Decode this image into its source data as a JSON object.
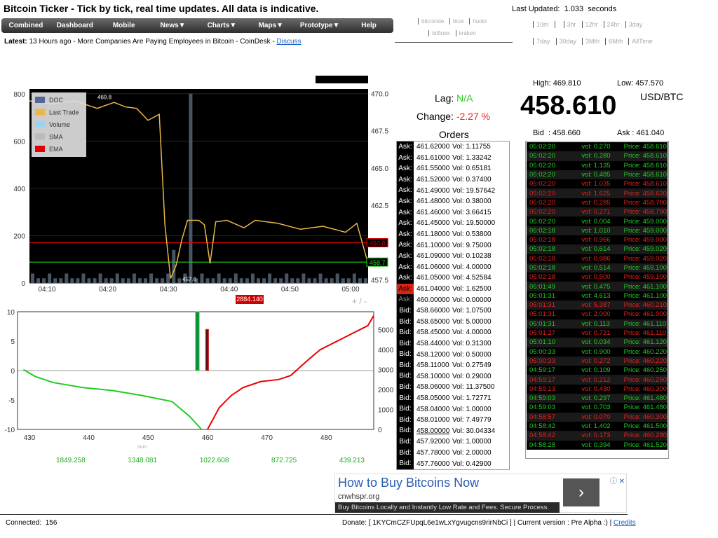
{
  "title": "Bitcoin Ticker - Tick by tick, real time updates. All data is indicative.",
  "nav": [
    "Combined",
    "Dashboard",
    "Mobile",
    "News▼",
    "Charts▼",
    "Maps▼",
    "Prototype▼",
    "Help"
  ],
  "latest": {
    "label": "Latest:",
    "text": " 13 Hours ago - More Companies Are Paying Employees in Bitcoin - CoinDesk - ",
    "link": "Discuss"
  },
  "exchanges": {
    "row1": [
      "bitcoinde",
      "btce",
      "huobi"
    ],
    "row2": [
      "bitfinex",
      "kraken"
    ],
    "row3": [
      "",
      "",
      ""
    ]
  },
  "last_updated": {
    "label": "Last Updated:",
    "value": "1.033",
    "unit": "seconds"
  },
  "timeframes": {
    "row1": [
      "10m",
      "",
      "3hr",
      "12hr",
      "24hr",
      "3day"
    ],
    "row2": [
      "7day",
      "30day",
      "3Mth",
      "6Mth",
      "AllTime"
    ]
  },
  "stats": {
    "lag_label": "Lag:",
    "lag": "N/A",
    "change_label": "Change:",
    "change": "-2.27 %",
    "orders_label": "Orders"
  },
  "ticker": {
    "high_label": "High:",
    "high": "469.810",
    "low_label": "Low:",
    "low": "457.570",
    "price": "458.610",
    "currency": "USD/BTC",
    "bid_label": "Bid",
    "bid": "458.660",
    "ask_label": "Ask",
    "ask": "461.040"
  },
  "orders": [
    {
      "t": "Ask:",
      "p": "461.62000",
      "v": "Vol: 1.11755"
    },
    {
      "t": "Ask:",
      "p": "461.61000",
      "v": "Vol: 1.33242"
    },
    {
      "t": "Ask:",
      "p": "461.55000",
      "v": "Vol: 0.65181"
    },
    {
      "t": "Ask:",
      "p": "461.52000",
      "v": "Vol: 0.37400"
    },
    {
      "t": "Ask:",
      "p": "461.49000",
      "v": "Vol: 19.57642"
    },
    {
      "t": "Ask:",
      "p": "461.48000",
      "v": "Vol: 0.38000"
    },
    {
      "t": "Ask:",
      "p": "461.46000",
      "v": "Vol: 3.66415"
    },
    {
      "t": "Ask:",
      "p": "461.45000",
      "v": "Vol: 19.50000"
    },
    {
      "t": "Ask:",
      "p": "461.18000",
      "v": "Vol: 0.53800"
    },
    {
      "t": "Ask:",
      "p": "461.10000",
      "v": "Vol: 9.75000"
    },
    {
      "t": "Ask:",
      "p": "461.09000",
      "v": "Vol: 0.10238"
    },
    {
      "t": "Ask:",
      "p": "461.06000",
      "v": "Vol: 4.00000"
    },
    {
      "t": "Ask:",
      "p": "461.05000",
      "v": "Vol: 4.52584"
    },
    {
      "t": "Ask:",
      "p": "461.04000",
      "v": "Vol: 1.62500",
      "hl": true
    },
    {
      "t": "Ask:",
      "p": "460.00000",
      "v": "Vol: 0.00000",
      "dim": true
    },
    {
      "t": "Bid:",
      "p": "458.66000",
      "v": "Vol: 1.07500"
    },
    {
      "t": "Bid:",
      "p": "458.65000",
      "v": "Vol: 5.00000"
    },
    {
      "t": "Bid:",
      "p": "458.45000",
      "v": "Vol: 4.00000"
    },
    {
      "t": "Bid:",
      "p": "458.44000",
      "v": "Vol: 0.31300"
    },
    {
      "t": "Bid:",
      "p": "458.12000",
      "v": "Vol: 0.50000"
    },
    {
      "t": "Bid:",
      "p": "458.11000",
      "v": "Vol: 0.27549"
    },
    {
      "t": "Bid:",
      "p": "458.10000",
      "v": "Vol: 0.29000"
    },
    {
      "t": "Bid:",
      "p": "458.06000",
      "v": "Vol: 11.37500"
    },
    {
      "t": "Bid:",
      "p": "458.05000",
      "v": "Vol: 1.72771"
    },
    {
      "t": "Bid:",
      "p": "458.04000",
      "v": "Vol: 1.00000"
    },
    {
      "t": "Bid:",
      "p": "458.01000",
      "v": "Vol: 7.49779"
    },
    {
      "t": "Bid:",
      "p": "458.00000",
      "v": "Vol: 30.04334",
      "ul": true
    },
    {
      "t": "Bid:",
      "p": "457.92000",
      "v": "Vol: 1.00000"
    },
    {
      "t": "Bid:",
      "p": "457.78000",
      "v": "Vol: 2.00000"
    },
    {
      "t": "Bid:",
      "p": "457.76000",
      "v": "Vol: 0.42900"
    }
  ],
  "trades": [
    {
      "t": "05:02:20",
      "v": "vol: 0.270",
      "p": "Price: 458.610",
      "c": "g"
    },
    {
      "t": "05:02:20",
      "v": "vol: 0.280",
      "p": "Price: 458.610",
      "c": "g"
    },
    {
      "t": "05:02:20",
      "v": "vol: 1.135",
      "p": "Price: 458.610",
      "c": "g"
    },
    {
      "t": "05:02:20",
      "v": "vol: 0.485",
      "p": "Price: 458.610",
      "c": "g"
    },
    {
      "t": "05:02:20",
      "v": "vol: 1.035",
      "p": "Price: 458.610",
      "c": "r"
    },
    {
      "t": "05:02:20",
      "v": "vol: 1.625",
      "p": "Price: 458.620",
      "c": "r"
    },
    {
      "t": "05:02:20",
      "v": "vol: 0.285",
      "p": "Price: 458.780",
      "c": "r"
    },
    {
      "t": "05:02:20",
      "v": "vol: 0.271",
      "p": "Price: 458.790",
      "c": "r"
    },
    {
      "t": "05:02:20",
      "v": "vol: 0.004",
      "p": "Price: 459.000",
      "c": "g"
    },
    {
      "t": "05:02:18",
      "v": "vol: 1.010",
      "p": "Price: 459.000",
      "c": "g"
    },
    {
      "t": "05:02:18",
      "v": "vol: 0.966",
      "p": "Price: 459.000",
      "c": "r"
    },
    {
      "t": "05:02:18",
      "v": "vol: 0.614",
      "p": "Price: 459.020",
      "c": "g"
    },
    {
      "t": "05:02:18",
      "v": "vol: 0.986",
      "p": "Price: 459.020",
      "c": "r"
    },
    {
      "t": "05:02:18",
      "v": "vol: 0.514",
      "p": "Price: 459.100",
      "c": "g"
    },
    {
      "t": "05:02:18",
      "v": "vol: 0.500",
      "p": "Price: 459.100",
      "c": "r"
    },
    {
      "t": "05:01:49",
      "v": "vol: 0.475",
      "p": "Price: 461.100",
      "c": "g"
    },
    {
      "t": "05:01:31",
      "v": "vol: 4.613",
      "p": "Price: 461.100",
      "c": "g"
    },
    {
      "t": "05:01:31",
      "v": "vol: 5.387",
      "p": "Price: 460.210",
      "c": "r"
    },
    {
      "t": "05:01:31",
      "v": "vol: 2.000",
      "p": "Price: 461.000",
      "c": "r"
    },
    {
      "t": "05:01:31",
      "v": "vol: 0.113",
      "p": "Price: 461.110",
      "c": "g"
    },
    {
      "t": "05:01:27",
      "v": "vol: 0.721",
      "p": "Price: 461.110",
      "c": "r"
    },
    {
      "t": "05:01:10",
      "v": "vol: 0.034",
      "p": "Price: 461.120",
      "c": "g"
    },
    {
      "t": "05:00:33",
      "v": "vol: 0.900",
      "p": "Price: 460.220",
      "c": "g"
    },
    {
      "t": "05:00:33",
      "v": "vol: 0.272",
      "p": "Price: 460.220",
      "c": "r"
    },
    {
      "t": "04:59:17",
      "v": "vol: 0.109",
      "p": "Price: 460.250",
      "c": "g"
    },
    {
      "t": "04:59:17",
      "v": "vol: 0.212",
      "p": "Price: 460.250",
      "c": "r"
    },
    {
      "t": "04:59:13",
      "v": "vol: 0.430",
      "p": "Price: 460.300",
      "c": "r"
    },
    {
      "t": "04:59:03",
      "v": "vol: 0.297",
      "p": "Price: 461.480",
      "c": "g"
    },
    {
      "t": "04:59:03",
      "v": "vol: 0.703",
      "p": "Price: 461.480",
      "c": "g"
    },
    {
      "t": "04:58:57",
      "v": "vol: 0.070",
      "p": "Price: 460.300",
      "c": "r"
    },
    {
      "t": "04:58:42",
      "v": "vol: 1.402",
      "p": "Price: 461.500",
      "c": "g"
    },
    {
      "t": "04:58:42",
      "v": "vol: 0.173",
      "p": "Price: 460.280",
      "c": "r"
    },
    {
      "t": "04:58:28",
      "v": "vol: 0.394",
      "p": "Price: 461.520",
      "c": "g"
    }
  ],
  "chart_data": [
    {
      "type": "line",
      "title": "",
      "left_axis_ticks": [
        "0",
        "200",
        "400",
        "600",
        "800"
      ],
      "right_axis_ticks": [
        "457.5",
        "460.0",
        "462.5",
        "465.0",
        "467.5",
        "470.0"
      ],
      "x_ticks": [
        "04:10",
        "04:20",
        "04:30",
        "04:40",
        "04:50",
        "05:00"
      ],
      "legend": [
        "DOC",
        "Last Trade",
        "Volume",
        "SMA",
        "EMA"
      ],
      "legend_colors": [
        "#556699",
        "#e8b84a",
        "#9cd3f0",
        "#bbbbbb",
        "#e00000"
      ],
      "annotations": {
        "high": "469.8",
        "low": "457.6",
        "red_line_label": "460.0",
        "green_line_label": "458.7",
        "price_box": "2884.140"
      },
      "last_trade": {
        "x": [
          0,
          4,
          8,
          12,
          15,
          17,
          19,
          21,
          23,
          24,
          25,
          26,
          27,
          28,
          30,
          31,
          32,
          33,
          35,
          38,
          40,
          44,
          48,
          52,
          56,
          58,
          60
        ],
        "y": [
          469.5,
          469.3,
          469.5,
          469.0,
          469.4,
          469.1,
          469.0,
          468.2,
          468.6,
          461.2,
          457.6,
          458.5,
          460.2,
          461.5,
          461.5,
          461.2,
          458.6,
          461.4,
          461.5,
          461.0,
          461.5,
          461.3,
          460.9,
          461.1,
          460.7,
          461.3,
          458.6
        ]
      },
      "red_line": 460.0,
      "green_line": 458.7
    },
    {
      "type": "line",
      "title": "",
      "left_axis_ticks": [
        "-10",
        "-5",
        "0",
        "5",
        "10"
      ],
      "right_axis_ticks": [
        "0",
        "1000",
        "2000",
        "3000",
        "4000",
        "5000"
      ],
      "x_ticks": [
        "430",
        "440",
        "450",
        "460",
        "470",
        "480"
      ],
      "x_label": "sum",
      "sums": [
        "1849.258",
        "1348.081",
        "1022.608",
        "872.725",
        "439.213"
      ],
      "bid_cum": {
        "x": [
          430,
          432,
          435,
          440,
          445,
          450,
          455,
          458,
          460
        ],
        "y": [
          3000,
          2650,
          2350,
          2100,
          1950,
          1700,
          1400,
          650,
          0
        ]
      },
      "ask_cum": {
        "x": [
          461,
          463,
          465,
          467,
          470,
          473,
          475,
          478,
          480,
          484,
          488,
          489
        ],
        "y": [
          0,
          1100,
          1700,
          2100,
          2400,
          2500,
          2700,
          3500,
          4000,
          4600,
          5200,
          5700
        ]
      }
    }
  ],
  "ad": {
    "headline": "How to Buy Bitcoins Now",
    "domain": "cnwhspr.org",
    "tagline": "Buy Bitcoins Locally and Instantly Low Rate and Fees. Secure Process.",
    "button": "›",
    "icons": "ⓘ ✕"
  },
  "footer": {
    "connected_label": "Connected:",
    "connected": "156",
    "donate": "Donate: [ 1KYCmCZFUpqL6e1wLxYgvugcns9rirNbCi ] | Current version : Pre Alpha :) | ",
    "credits": "Credits"
  },
  "colors": {
    "green": "#22cc22",
    "red": "#e22222",
    "panel": "#000000"
  }
}
